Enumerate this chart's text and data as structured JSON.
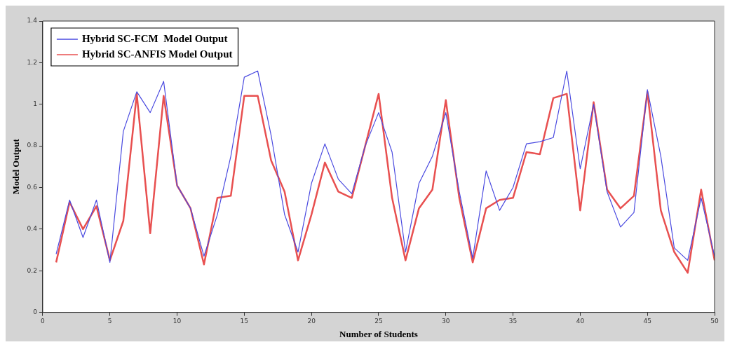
{
  "chart_data": {
    "type": "line",
    "xlabel": "Number of Students",
    "ylabel": "Model Output",
    "x": [
      1,
      2,
      3,
      4,
      5,
      6,
      7,
      8,
      9,
      10,
      11,
      12,
      13,
      14,
      15,
      16,
      17,
      18,
      19,
      20,
      21,
      22,
      23,
      24,
      25,
      26,
      27,
      28,
      29,
      30,
      31,
      32,
      33,
      34,
      35,
      36,
      37,
      38,
      39,
      40,
      41,
      42,
      43,
      44,
      45,
      46,
      47,
      48,
      49,
      50
    ],
    "series": [
      {
        "name": "Hybrid SC-FCM  Model Output",
        "color": "#4a4ae0",
        "values": [
          0.28,
          0.54,
          0.36,
          0.54,
          0.24,
          0.87,
          1.06,
          0.96,
          1.11,
          0.61,
          0.5,
          0.27,
          0.47,
          0.75,
          1.13,
          1.16,
          0.85,
          0.47,
          0.29,
          0.62,
          0.81,
          0.64,
          0.57,
          0.8,
          0.96,
          0.77,
          0.29,
          0.62,
          0.75,
          0.96,
          0.58,
          0.26,
          0.68,
          0.49,
          0.6,
          0.81,
          0.82,
          0.84,
          1.16,
          0.69,
          1.0,
          0.58,
          0.41,
          0.48,
          1.07,
          0.75,
          0.31,
          0.25,
          0.55,
          0.27
        ]
      },
      {
        "name": "Hybrid SC-ANFIS Model Output",
        "color": "#e85050",
        "values": [
          0.24,
          0.53,
          0.4,
          0.51,
          0.25,
          0.44,
          1.05,
          0.38,
          1.04,
          0.61,
          0.5,
          0.23,
          0.55,
          0.56,
          1.04,
          1.04,
          0.73,
          0.58,
          0.25,
          0.47,
          0.72,
          0.58,
          0.55,
          0.8,
          1.05,
          0.55,
          0.25,
          0.5,
          0.59,
          1.02,
          0.55,
          0.24,
          0.5,
          0.54,
          0.55,
          0.77,
          0.76,
          1.03,
          1.05,
          0.49,
          1.01,
          0.59,
          0.5,
          0.56,
          1.06,
          0.49,
          0.29,
          0.19,
          0.59,
          0.25
        ]
      }
    ],
    "xlim": [
      0,
      50
    ],
    "xticks": [
      0,
      5,
      10,
      15,
      20,
      25,
      30,
      35,
      40,
      45,
      50
    ],
    "ylim": [
      0,
      1.4
    ],
    "yticks": [
      0,
      0.2,
      0.4,
      0.6,
      0.8,
      1,
      1.2,
      1.4
    ],
    "grid": false,
    "legend": "top left",
    "marker": "none",
    "line_style": "solid"
  }
}
